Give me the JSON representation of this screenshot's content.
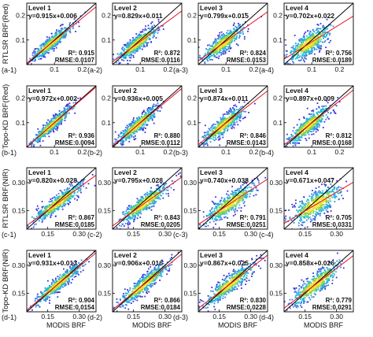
{
  "chart_data": {
    "type": "scatter",
    "grid": false,
    "x_tick_label_groups": {
      "red": [
        "0.1",
        "0.2"
      ],
      "nir": [
        "0.15",
        "0.30"
      ]
    },
    "y_tick_label_groups": {
      "red": [
        "0.2",
        "0.1"
      ],
      "nir": [
        "0.30",
        "0.15"
      ]
    },
    "x_tick_values": {
      "red": [
        0.1,
        0.2
      ],
      "nir": [
        0.15,
        0.3
      ]
    },
    "y_tick_values": {
      "red": [
        0.2,
        0.1
      ],
      "nir": [
        0.3,
        0.15
      ]
    },
    "axis_ranges": {
      "red": [
        0.0,
        0.25
      ],
      "nir": [
        0.05,
        0.38
      ]
    },
    "rows": [
      {
        "ylabel": "RTLSR BRF(Red)",
        "band": "red",
        "xlabel": "",
        "panels": [
          {
            "label": "(a-1)",
            "level": "Level 1",
            "equation": "y=0.915x+0.006",
            "slope": 0.915,
            "intercept": 0.006,
            "r2": "R²: 0.915",
            "rmse": "RMSE:0.0107"
          },
          {
            "label": "(a-2)",
            "level": "Level 2",
            "equation": "y=0.829x+0.011",
            "slope": 0.829,
            "intercept": 0.011,
            "r2": "R²: 0.872",
            "rmse": "RMSE:0.0116"
          },
          {
            "label": "(a-3)",
            "level": "Level 3",
            "equation": "y=0.799x+0.015",
            "slope": 0.799,
            "intercept": 0.015,
            "r2": "R²: 0.824",
            "rmse": "RMSE:0.0153"
          },
          {
            "label": "(a-4)",
            "level": "Level 4",
            "equation": "y=0.702x+0.022",
            "slope": 0.702,
            "intercept": 0.022,
            "r2": "R²: 0.756",
            "rmse": "RMSE:0.0189"
          }
        ]
      },
      {
        "ylabel": "Topo-KD BRF(Red)",
        "band": "red",
        "xlabel": "",
        "panels": [
          {
            "label": "(b-1)",
            "level": "Level 1",
            "equation": "y=0.972x+0.002",
            "slope": 0.972,
            "intercept": 0.002,
            "r2": "R²: 0.936",
            "rmse": "RMSE:0.0094"
          },
          {
            "label": "(b-2)",
            "level": "Level 2",
            "equation": "y=0.936x+0.005",
            "slope": 0.936,
            "intercept": 0.005,
            "r2": "R²: 0.880",
            "rmse": "RMSE:0.0112"
          },
          {
            "label": "(b-3)",
            "level": "Level 3",
            "equation": "y=0.874x+0.011",
            "slope": 0.874,
            "intercept": 0.011,
            "r2": "R²: 0.846",
            "rmse": "RMSE:0.0143"
          },
          {
            "label": "(b-4)",
            "level": "Level 4",
            "equation": "y=0.897x+0.009",
            "slope": 0.897,
            "intercept": 0.009,
            "r2": "R²: 0.812",
            "rmse": "RMSE:0.0168"
          }
        ]
      },
      {
        "ylabel": "RTLSR BRF(NIR)",
        "band": "nir",
        "xlabel": "",
        "panels": [
          {
            "label": "(c-1)",
            "level": "Level 1",
            "equation": "y=0.820x+0.028",
            "slope": 0.82,
            "intercept": 0.028,
            "r2": "R²: 0.867",
            "rmse": "RMSE:0.0185"
          },
          {
            "label": "(c-2)",
            "level": "Level 2",
            "equation": "y=0.795x+0.028",
            "slope": 0.795,
            "intercept": 0.028,
            "r2": "R²: 0.843",
            "rmse": "RMSE:0.0205"
          },
          {
            "label": "(c-3)",
            "level": "Level 3",
            "equation": "y=0.740x+0.038",
            "slope": 0.74,
            "intercept": 0.038,
            "r2": "R²: 0.791",
            "rmse": "RMSE:0.0251"
          },
          {
            "label": "(c-4)",
            "level": "Level 4",
            "equation": "y=0.671x+0.047",
            "slope": 0.671,
            "intercept": 0.047,
            "r2": "R²: 0.705",
            "rmse": "RMSE:0.0331"
          }
        ]
      },
      {
        "ylabel": "Topo-KD BRF(NIR)",
        "band": "nir",
        "xlabel": "MODIS BRF",
        "panels": [
          {
            "label": "(d-1)",
            "level": "Level 1",
            "equation": "y=0.931x+0.013",
            "slope": 0.931,
            "intercept": 0.013,
            "r2": "R²: 0.904",
            "rmse": "RMSE:0.0154"
          },
          {
            "label": "(d-2)",
            "level": "Level 2",
            "equation": "y=0.906x+0.016",
            "slope": 0.906,
            "intercept": 0.016,
            "r2": "R²: 0.866",
            "rmse": "RMSE:0.0184"
          },
          {
            "label": "(d-3)",
            "level": "Level 3",
            "equation": "y=0.867x+0.025",
            "slope": 0.867,
            "intercept": 0.025,
            "r2": "R²: 0.830",
            "rmse": "RMSE:0.0228"
          },
          {
            "label": "(d-4)",
            "level": "Level 4",
            "equation": "y=0.858x+0.026",
            "slope": 0.858,
            "intercept": 0.026,
            "r2": "R²: 0.779",
            "rmse": "RMSE:0.0291"
          }
        ]
      }
    ]
  },
  "colors": {
    "one_to_one_line": "#000000",
    "regression_line": "#e8102a",
    "scatter_low_density": "#3a2fd6",
    "scatter_mid_density": "#21b8d9",
    "scatter_high_density": "#f2e22a"
  }
}
